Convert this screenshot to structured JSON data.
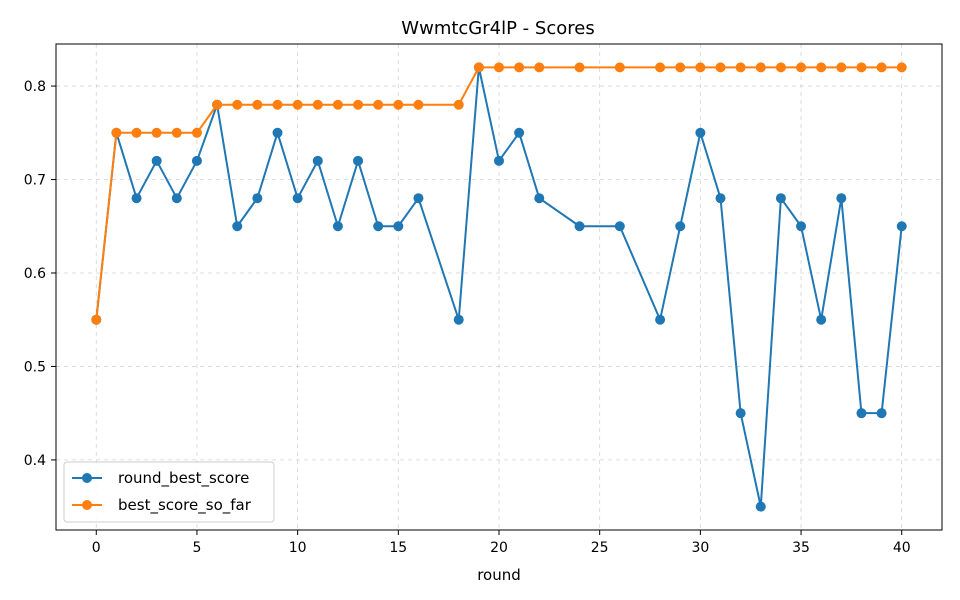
{
  "chart_data": {
    "type": "line",
    "title": "WwmtcGr4lP - Scores",
    "xlabel": "round",
    "ylabel": "",
    "xlim": [
      -2,
      42
    ],
    "ylim": [
      0.325,
      0.845
    ],
    "x_ticks": [
      0,
      5,
      10,
      15,
      20,
      25,
      30,
      35,
      40
    ],
    "y_ticks": [
      0.4,
      0.5,
      0.6,
      0.7,
      0.8
    ],
    "grid": true,
    "legend_position": "lower-left",
    "x": [
      0,
      1,
      2,
      3,
      4,
      5,
      6,
      7,
      8,
      9,
      10,
      11,
      12,
      13,
      14,
      15,
      16,
      18,
      19,
      20,
      21,
      22,
      24,
      26,
      28,
      29,
      30,
      31,
      32,
      33,
      34,
      35,
      36,
      37,
      38,
      39,
      40
    ],
    "series": [
      {
        "name": "round_best_score",
        "color": "#1f77b4",
        "marker": "circle",
        "values": [
          0.55,
          0.75,
          0.68,
          0.72,
          0.68,
          0.72,
          0.78,
          0.65,
          0.68,
          0.75,
          0.68,
          0.72,
          0.65,
          0.72,
          0.65,
          0.65,
          0.68,
          0.55,
          0.82,
          0.72,
          0.75,
          0.68,
          0.65,
          0.65,
          0.55,
          0.65,
          0.75,
          0.68,
          0.45,
          0.35,
          0.68,
          0.65,
          0.55,
          0.68,
          0.45,
          0.45,
          0.65
        ]
      },
      {
        "name": "best_score_so_far",
        "color": "#ff7f0e",
        "marker": "circle",
        "values": [
          0.55,
          0.75,
          0.75,
          0.75,
          0.75,
          0.75,
          0.78,
          0.78,
          0.78,
          0.78,
          0.78,
          0.78,
          0.78,
          0.78,
          0.78,
          0.78,
          0.78,
          0.78,
          0.82,
          0.82,
          0.82,
          0.82,
          0.82,
          0.82,
          0.82,
          0.82,
          0.82,
          0.82,
          0.82,
          0.82,
          0.82,
          0.82,
          0.82,
          0.82,
          0.82,
          0.82,
          0.82
        ]
      }
    ]
  }
}
